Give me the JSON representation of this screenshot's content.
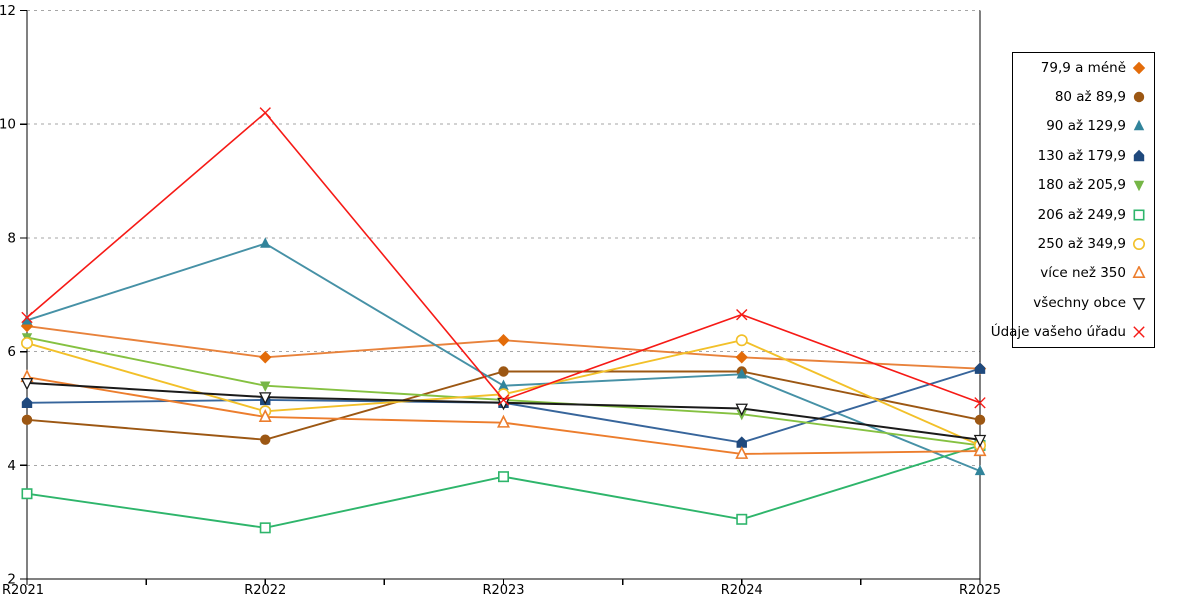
{
  "chart_data": {
    "type": "line",
    "title": "",
    "xlabel": "",
    "ylabel": "",
    "categories": [
      "R2021",
      "R2022",
      "R2023",
      "R2024",
      "R2025"
    ],
    "ylim": [
      2,
      12
    ],
    "yticks": [
      "2",
      "4",
      "6",
      "8",
      "10",
      "12"
    ],
    "grid": "horizontal dotted gridlines at 4,6,8,10,12",
    "legend_position": "right",
    "series": [
      {
        "name": "79,9 a méně",
        "marker": "diamond",
        "fill": "filled",
        "color": "#E36C0A",
        "line_color": "#E8823B",
        "values": [
          6.45,
          5.9,
          6.2,
          5.9,
          5.7
        ]
      },
      {
        "name": "80 až 89,9",
        "marker": "circle",
        "fill": "filled",
        "color": "#9C5713",
        "line_color": "#9C5713",
        "values": [
          4.8,
          4.45,
          5.65,
          5.65,
          4.8
        ]
      },
      {
        "name": "90 až 129,9",
        "marker": "triangle-up",
        "fill": "filled",
        "color": "#31849B",
        "line_color": "#4691A6",
        "values": [
          6.55,
          7.9,
          5.4,
          5.6,
          3.9
        ]
      },
      {
        "name": "130 až 179,9",
        "marker": "pentagon",
        "fill": "filled",
        "color": "#1F497D",
        "line_color": "#37659B",
        "values": [
          5.1,
          5.15,
          5.1,
          4.4,
          5.7
        ]
      },
      {
        "name": "180 až 205,9",
        "marker": "triangle-down",
        "fill": "filled",
        "color": "#76B647",
        "line_color": "#85C141",
        "values": [
          6.25,
          5.4,
          5.15,
          4.9,
          4.35
        ]
      },
      {
        "name": "206 až 249,9",
        "marker": "square",
        "fill": "open",
        "color": "#2EB56B",
        "line_color": "#2EB56B",
        "values": [
          3.5,
          2.9,
          3.8,
          3.05,
          4.35
        ]
      },
      {
        "name": "250 až 349,9",
        "marker": "circle",
        "fill": "open",
        "color": "#F2C029",
        "line_color": "#F2C029",
        "values": [
          6.15,
          4.95,
          5.25,
          6.2,
          4.35
        ]
      },
      {
        "name": "více než 350",
        "marker": "triangle-up",
        "fill": "open",
        "color": "#EC7D2D",
        "line_color": "#EC7D2D",
        "values": [
          5.55,
          4.85,
          4.75,
          4.2,
          4.25
        ]
      },
      {
        "name": "všechny obce",
        "marker": "triangle-down",
        "fill": "open",
        "color": "#1A1A1A",
        "line_color": "#1A1A1A",
        "values": [
          5.45,
          5.2,
          5.1,
          5.0,
          4.45
        ]
      },
      {
        "name": "Údaje vašeho úřadu",
        "marker": "x",
        "fill": "open",
        "color": "#F61A16",
        "line_color": "#F61A16",
        "values": [
          6.6,
          10.2,
          5.15,
          6.65,
          5.1
        ]
      }
    ]
  },
  "colors": {
    "axis": "#000000",
    "grid": "#A6A6A6",
    "background": "#FFFFFF",
    "text": "#000000"
  }
}
